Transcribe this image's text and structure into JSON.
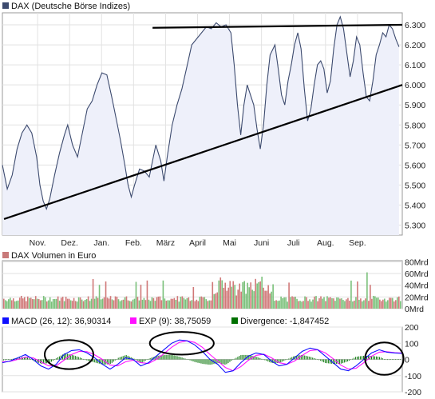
{
  "chart_data": [
    {
      "type": "line",
      "panel": "price",
      "legend": {
        "label": "DAX (Deutsche Börse Indizes)",
        "color": "#3c4a6e"
      },
      "x_tick_labels": [
        "Nov.",
        "Dez.",
        "Jan.",
        "Feb.",
        "März",
        "April",
        "Mai",
        "Juni",
        "Juli",
        "Aug.",
        "Sep."
      ],
      "y_tick_labels": [
        "6.300",
        "6.200",
        "6.100",
        "6.000",
        "5.900",
        "5.800",
        "5.700",
        "5.600",
        "5.500",
        "5.400",
        "5.300"
      ],
      "y_ticks": [
        6300,
        6200,
        6100,
        6000,
        5900,
        5800,
        5700,
        5600,
        5500,
        5400,
        5300
      ],
      "ylim": [
        5250,
        6360
      ],
      "x_range_months": [
        0,
        11.1
      ],
      "grid": true,
      "fill": "area",
      "series": [
        {
          "values": [
            [
              0.0,
              5600
            ],
            [
              0.15,
              5480
            ],
            [
              0.3,
              5550
            ],
            [
              0.45,
              5680
            ],
            [
              0.6,
              5760
            ],
            [
              0.75,
              5800
            ],
            [
              0.9,
              5760
            ],
            [
              1.05,
              5640
            ],
            [
              1.15,
              5500
            ],
            [
              1.25,
              5420
            ],
            [
              1.35,
              5380
            ],
            [
              1.45,
              5430
            ],
            [
              1.6,
              5550
            ],
            [
              1.75,
              5660
            ],
            [
              1.9,
              5750
            ],
            [
              2.0,
              5800
            ],
            [
              2.15,
              5700
            ],
            [
              2.3,
              5640
            ],
            [
              2.45,
              5760
            ],
            [
              2.6,
              5880
            ],
            [
              2.75,
              5920
            ],
            [
              2.9,
              6000
            ],
            [
              3.05,
              6060
            ],
            [
              3.2,
              6050
            ],
            [
              3.35,
              5940
            ],
            [
              3.5,
              5820
            ],
            [
              3.62,
              5720
            ],
            [
              3.75,
              5600
            ],
            [
              3.85,
              5500
            ],
            [
              3.95,
              5440
            ],
            [
              4.05,
              5500
            ],
            [
              4.2,
              5580
            ],
            [
              4.35,
              5570
            ],
            [
              4.5,
              5540
            ],
            [
              4.6,
              5620
            ],
            [
              4.7,
              5700
            ],
            [
              4.85,
              5620
            ],
            [
              4.95,
              5520
            ],
            [
              5.05,
              5640
            ],
            [
              5.2,
              5800
            ],
            [
              5.35,
              5900
            ],
            [
              5.5,
              5980
            ],
            [
              5.65,
              6090
            ],
            [
              5.8,
              6200
            ],
            [
              5.95,
              6230
            ],
            [
              6.1,
              6260
            ],
            [
              6.25,
              6290
            ],
            [
              6.4,
              6280
            ],
            [
              6.55,
              6310
            ],
            [
              6.7,
              6290
            ],
            [
              6.85,
              6300
            ],
            [
              7.0,
              6260
            ],
            [
              7.1,
              6100
            ],
            [
              7.2,
              5900
            ],
            [
              7.3,
              5750
            ],
            [
              7.4,
              5900
            ],
            [
              7.5,
              6000
            ],
            [
              7.6,
              5950
            ],
            [
              7.7,
              5900
            ],
            [
              7.8,
              5780
            ],
            [
              7.9,
              5680
            ],
            [
              8.0,
              5800
            ],
            [
              8.1,
              6000
            ],
            [
              8.2,
              6150
            ],
            [
              8.35,
              6200
            ],
            [
              8.45,
              6080
            ],
            [
              8.55,
              5950
            ],
            [
              8.65,
              5900
            ],
            [
              8.75,
              6020
            ],
            [
              8.85,
              6100
            ],
            [
              8.95,
              6200
            ],
            [
              9.05,
              6260
            ],
            [
              9.15,
              6180
            ],
            [
              9.25,
              5980
            ],
            [
              9.35,
              5820
            ],
            [
              9.45,
              5880
            ],
            [
              9.55,
              6000
            ],
            [
              9.65,
              6100
            ],
            [
              9.75,
              6120
            ],
            [
              9.85,
              6080
            ],
            [
              9.95,
              5960
            ],
            [
              10.05,
              6020
            ],
            [
              10.15,
              6180
            ],
            [
              10.25,
              6300
            ],
            [
              10.35,
              6340
            ],
            [
              10.45,
              6280
            ],
            [
              10.55,
              6160
            ],
            [
              10.65,
              6040
            ],
            [
              10.75,
              6120
            ],
            [
              10.85,
              6240
            ],
            [
              10.95,
              6200
            ],
            [
              11.05,
              6060
            ],
            [
              11.15,
              5940
            ],
            [
              11.25,
              5920
            ],
            [
              11.35,
              6020
            ],
            [
              11.45,
              6150
            ],
            [
              11.55,
              6200
            ],
            [
              11.65,
              6260
            ],
            [
              11.75,
              6240
            ],
            [
              11.85,
              6300
            ],
            [
              11.95,
              6280
            ],
            [
              12.05,
              6230
            ],
            [
              12.15,
              6190
            ]
          ]
        }
      ],
      "annotations": [
        {
          "type": "trendline",
          "from": [
            0.05,
            5330
          ],
          "to": [
            12.5,
            6000
          ]
        },
        {
          "type": "trendline",
          "from": [
            4.6,
            6285
          ],
          "to": [
            12.5,
            6300
          ]
        }
      ]
    },
    {
      "type": "bar",
      "panel": "volume",
      "legend": {
        "label": "DAX Volumen in Euro",
        "color": "#c87a7a"
      },
      "y_tick_labels": [
        "80Mrd",
        "60Mrd",
        "40Mrd",
        "20Mrd",
        "0Mrd"
      ],
      "y_ticks": [
        80,
        60,
        40,
        20,
        0
      ],
      "ylim": [
        0,
        82
      ],
      "up_color": "#7ac07a",
      "down_color": "#d07878",
      "grid": true
    },
    {
      "type": "line",
      "panel": "indicator",
      "legends": [
        {
          "label": "MACD (26, 12): 36,90314",
          "color": "#1010ff"
        },
        {
          "label": "EXP (9): 38,75059",
          "color": "#ff10ff"
        },
        {
          "label": "Divergence: -1,847452",
          "color": "#007000"
        }
      ],
      "y_tick_labels": [
        "200",
        "100",
        "0",
        "-100",
        "-200"
      ],
      "y_ticks": [
        200,
        100,
        0,
        -100,
        -200
      ],
      "ylim": [
        -200,
        200
      ],
      "grid": true,
      "macd_points": [
        [
          0.0,
          -20
        ],
        [
          0.3,
          -10
        ],
        [
          0.6,
          10
        ],
        [
          0.9,
          30
        ],
        [
          1.2,
          0
        ],
        [
          1.5,
          -40
        ],
        [
          1.8,
          -60
        ],
        [
          2.1,
          -30
        ],
        [
          2.4,
          30
        ],
        [
          2.7,
          55
        ],
        [
          3.0,
          60
        ],
        [
          3.3,
          40
        ],
        [
          3.6,
          10
        ],
        [
          3.9,
          -30
        ],
        [
          4.2,
          -60
        ],
        [
          4.5,
          -30
        ],
        [
          4.8,
          10
        ],
        [
          5.1,
          0
        ],
        [
          5.4,
          -40
        ],
        [
          5.7,
          -20
        ],
        [
          6.0,
          20
        ],
        [
          6.3,
          60
        ],
        [
          6.6,
          100
        ],
        [
          6.9,
          120
        ],
        [
          7.2,
          115
        ],
        [
          7.5,
          90
        ],
        [
          7.8,
          50
        ],
        [
          8.1,
          0
        ],
        [
          8.4,
          -30
        ],
        [
          8.7,
          -80
        ],
        [
          9.0,
          -70
        ],
        [
          9.3,
          -20
        ],
        [
          9.6,
          20
        ],
        [
          9.9,
          40
        ],
        [
          10.2,
          30
        ],
        [
          10.5,
          -10
        ],
        [
          10.8,
          -40
        ],
        [
          11.1,
          -30
        ],
        [
          11.4,
          10
        ],
        [
          11.7,
          50
        ],
        [
          12.0,
          70
        ],
        [
          12.3,
          60
        ],
        [
          12.6,
          20
        ],
        [
          12.9,
          -20
        ],
        [
          13.2,
          -60
        ],
        [
          13.5,
          -70
        ],
        [
          13.8,
          -40
        ],
        [
          14.1,
          0
        ],
        [
          14.4,
          40
        ],
        [
          14.7,
          60
        ],
        [
          15.0,
          45
        ],
        [
          15.3,
          40
        ],
        [
          15.6,
          37
        ]
      ],
      "exp_points": [
        [
          0.0,
          -15
        ],
        [
          0.3,
          -12
        ],
        [
          0.6,
          0
        ],
        [
          0.9,
          15
        ],
        [
          1.2,
          10
        ],
        [
          1.5,
          -15
        ],
        [
          1.8,
          -40
        ],
        [
          2.1,
          -40
        ],
        [
          2.4,
          -5
        ],
        [
          2.7,
          30
        ],
        [
          3.0,
          50
        ],
        [
          3.3,
          48
        ],
        [
          3.6,
          28
        ],
        [
          3.9,
          0
        ],
        [
          4.2,
          -35
        ],
        [
          4.5,
          -40
        ],
        [
          4.8,
          -15
        ],
        [
          5.1,
          -5
        ],
        [
          5.4,
          -20
        ],
        [
          5.7,
          -25
        ],
        [
          6.0,
          0
        ],
        [
          6.3,
          35
        ],
        [
          6.6,
          75
        ],
        [
          6.9,
          105
        ],
        [
          7.2,
          115
        ],
        [
          7.5,
          105
        ],
        [
          7.8,
          75
        ],
        [
          8.1,
          30
        ],
        [
          8.4,
          -10
        ],
        [
          8.7,
          -50
        ],
        [
          9.0,
          -70
        ],
        [
          9.3,
          -45
        ],
        [
          9.6,
          -5
        ],
        [
          9.9,
          25
        ],
        [
          10.2,
          32
        ],
        [
          10.5,
          10
        ],
        [
          10.8,
          -20
        ],
        [
          11.1,
          -30
        ],
        [
          11.4,
          -10
        ],
        [
          11.7,
          25
        ],
        [
          12.0,
          55
        ],
        [
          12.3,
          60
        ],
        [
          12.6,
          40
        ],
        [
          12.9,
          5
        ],
        [
          13.2,
          -35
        ],
        [
          13.5,
          -60
        ],
        [
          13.8,
          -55
        ],
        [
          14.1,
          -20
        ],
        [
          14.4,
          20
        ],
        [
          14.7,
          45
        ],
        [
          15.0,
          48
        ],
        [
          15.3,
          42
        ],
        [
          15.6,
          39
        ]
      ],
      "annotations": [
        {
          "type": "ellipse",
          "center": [
            2.6,
            30
          ],
          "rx_months": 0.95,
          "ry": 90
        },
        {
          "type": "ellipse",
          "center": [
            7.0,
            100
          ],
          "rx_months": 1.25,
          "ry": 70
        },
        {
          "type": "ellipse",
          "center": [
            14.9,
            5
          ],
          "rx_months": 0.75,
          "ry": 100
        }
      ]
    }
  ]
}
